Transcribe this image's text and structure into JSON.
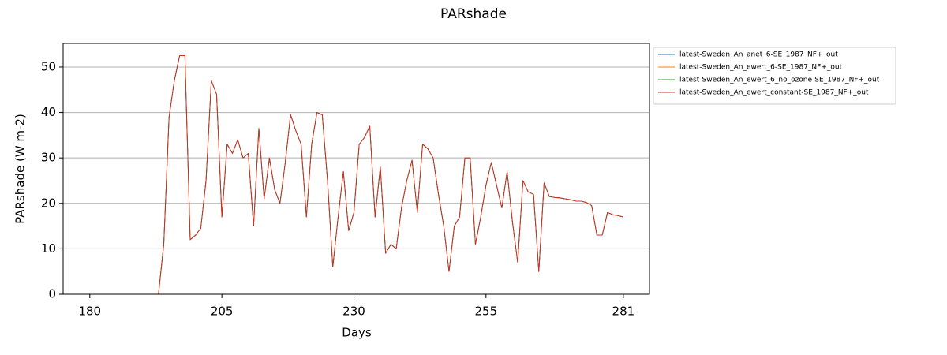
{
  "chart_data": {
    "type": "line",
    "title": "PARshade",
    "xlabel": "Days",
    "ylabel": "PARshade (W m-2)",
    "xlim": [
      174.95,
      285.95
    ],
    "ylim": [
      0,
      55.2
    ],
    "xticks": [
      180,
      205,
      230,
      255,
      281
    ],
    "yticks": [
      0,
      10,
      20,
      30,
      40,
      50
    ],
    "grid": "y",
    "legend": "outside-upper-right",
    "x": [
      180,
      181,
      182,
      183,
      184,
      185,
      186,
      187,
      188,
      189,
      190,
      191,
      192,
      193,
      194,
      195,
      196,
      197,
      198,
      199,
      200,
      201,
      202,
      203,
      204,
      205,
      206,
      207,
      208,
      209,
      210,
      211,
      212,
      213,
      214,
      215,
      216,
      217,
      218,
      219,
      220,
      221,
      222,
      223,
      224,
      225,
      226,
      227,
      228,
      229,
      230,
      231,
      232,
      233,
      234,
      235,
      236,
      237,
      238,
      239,
      240,
      241,
      242,
      243,
      244,
      245,
      246,
      247,
      248,
      249,
      250,
      251,
      252,
      253,
      254,
      255,
      256,
      257,
      258,
      259,
      260,
      261,
      262,
      263,
      264,
      265,
      266,
      267,
      268,
      269,
      270,
      271,
      272,
      273,
      274,
      275,
      276,
      277,
      278,
      279,
      280,
      281
    ],
    "series": [
      {
        "name": "latest-Sweden_An_anet_6-SE_1987_NF+_out",
        "color": "#1f77b4",
        "values": [
          0,
          0,
          0,
          0,
          0,
          0,
          0,
          0,
          0,
          0,
          0,
          0,
          0,
          0,
          11,
          39,
          47,
          52.5,
          52.5,
          12,
          13,
          14.5,
          25,
          47,
          44,
          17,
          33,
          31,
          34,
          30,
          31,
          15,
          36.5,
          21,
          30,
          23,
          20,
          29,
          39.5,
          36,
          33,
          17,
          33,
          40,
          39.5,
          25,
          6,
          17,
          27,
          14,
          18,
          33,
          34.5,
          37,
          17,
          28,
          9,
          11,
          10,
          19,
          25,
          29.5,
          18,
          33,
          32,
          30,
          22,
          15,
          5,
          15,
          17,
          30,
          30,
          11,
          17,
          24,
          29,
          24,
          19,
          27,
          16,
          7,
          25,
          22.5,
          22,
          5,
          24.5,
          21.5,
          21.3,
          21.2,
          21,
          20.8,
          20.5,
          20.5,
          20.2,
          19.5,
          13,
          13,
          18,
          17.5,
          17.3,
          17
        ]
      },
      {
        "name": "latest-Sweden_An_ewert_6-SE_1987_NF+_out",
        "color": "#ff7f0e",
        "values": [
          0,
          0,
          0,
          0,
          0,
          0,
          0,
          0,
          0,
          0,
          0,
          0,
          0,
          0,
          11,
          39,
          47,
          52.5,
          52.5,
          12,
          13,
          14.5,
          25,
          47,
          44,
          17,
          33,
          31,
          34,
          30,
          31,
          15,
          36.5,
          21,
          30,
          23,
          20,
          29,
          39.5,
          36,
          33,
          17,
          33,
          40,
          39.5,
          25,
          6,
          17,
          27,
          14,
          18,
          33,
          34.5,
          37,
          17,
          28,
          9,
          11,
          10,
          19,
          25,
          29.5,
          18,
          33,
          32,
          30,
          22,
          15,
          5,
          15,
          17,
          30,
          30,
          11,
          17,
          24,
          29,
          24,
          19,
          27,
          16,
          7,
          25,
          22.5,
          22,
          5,
          24.5,
          21.5,
          21.3,
          21.2,
          21,
          20.8,
          20.5,
          20.5,
          20.2,
          19.5,
          13,
          13,
          18,
          17.5,
          17.3,
          17
        ]
      },
      {
        "name": "latest-Sweden_An_ewert_6_no_ozone-SE_1987_NF+_out",
        "color": "#2ca02c",
        "values": [
          0,
          0,
          0,
          0,
          0,
          0,
          0,
          0,
          0,
          0,
          0,
          0,
          0,
          0,
          11,
          39,
          47,
          52.5,
          52.5,
          12,
          13,
          14.5,
          25,
          47,
          44,
          17,
          33,
          31,
          34,
          30,
          31,
          15,
          36.5,
          21,
          30,
          23,
          20,
          29,
          39.5,
          36,
          33,
          17,
          33,
          40,
          39.5,
          25,
          6,
          17,
          27,
          14,
          18,
          33,
          34.5,
          37,
          17,
          28,
          9,
          11,
          10,
          19,
          25,
          29.5,
          18,
          33,
          32,
          30,
          22,
          15,
          5,
          15,
          17,
          30,
          30,
          11,
          17,
          24,
          29,
          24,
          19,
          27,
          16,
          7,
          25,
          22.5,
          22,
          5,
          24.5,
          21.5,
          21.3,
          21.2,
          21,
          20.8,
          20.5,
          20.5,
          20.2,
          19.5,
          13,
          13,
          18,
          17.5,
          17.3,
          17
        ]
      },
      {
        "name": "latest-Sweden_An_ewert_constant-SE_1987_NF+_out",
        "color": "#d62728",
        "values": [
          0,
          0,
          0,
          0,
          0,
          0,
          0,
          0,
          0,
          0,
          0,
          0,
          0,
          0,
          11,
          39,
          47,
          52.5,
          52.5,
          12,
          13,
          14.5,
          25,
          47,
          44,
          17,
          33,
          31,
          34,
          30,
          31,
          15,
          36.5,
          21,
          30,
          23,
          20,
          29,
          39.5,
          36,
          33,
          17,
          33,
          40,
          39.5,
          25,
          6,
          17,
          27,
          14,
          18,
          33,
          34.5,
          37,
          17,
          28,
          9,
          11,
          10,
          19,
          25,
          29.5,
          18,
          33,
          32,
          30,
          22,
          15,
          5,
          15,
          17,
          30,
          30,
          11,
          17,
          24,
          29,
          24,
          19,
          27,
          16,
          7,
          25,
          22.5,
          22,
          5,
          24.5,
          21.5,
          21.3,
          21.2,
          21,
          20.8,
          20.5,
          20.5,
          20.2,
          19.5,
          13,
          13,
          18,
          17.5,
          17.3,
          17
        ]
      }
    ]
  }
}
